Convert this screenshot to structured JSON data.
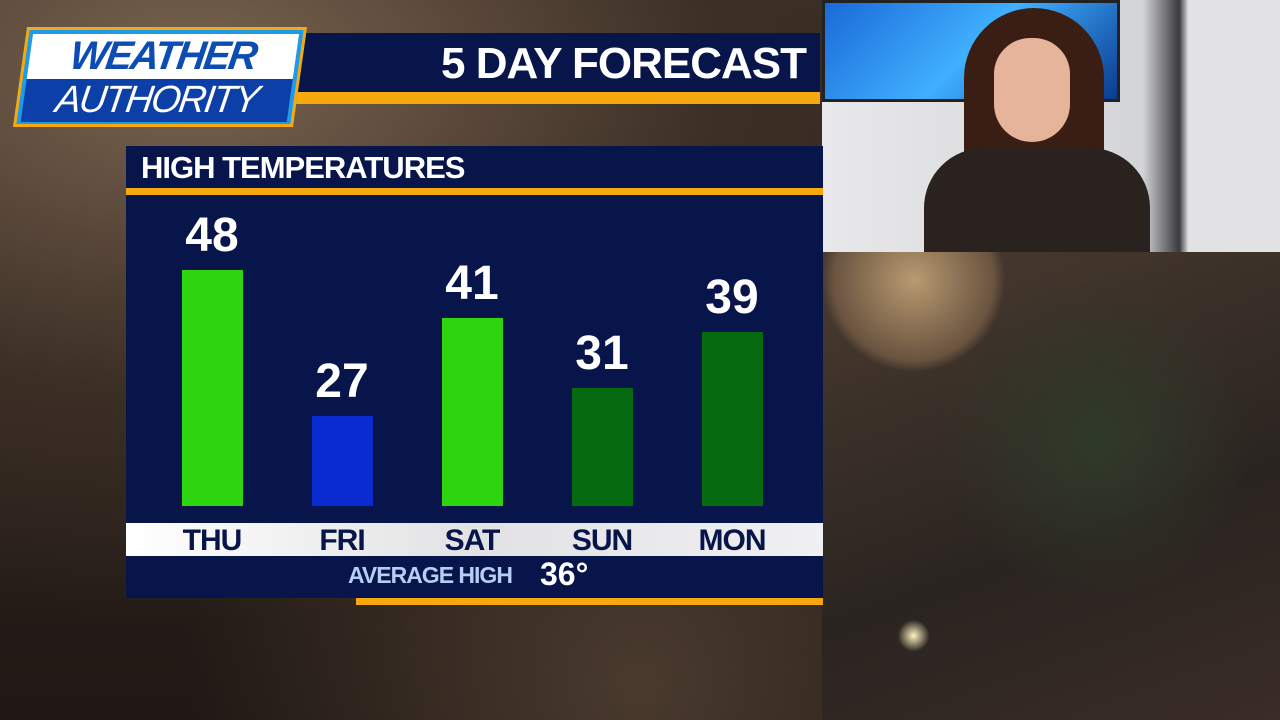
{
  "logo": {
    "line1": "WEATHER",
    "line2": "AUTHORITY"
  },
  "banner": {
    "title": "5 DAY FORECAST"
  },
  "chart_data": {
    "type": "bar",
    "title": "HIGH TEMPERATURES",
    "categories": [
      "THU",
      "FRI",
      "SAT",
      "SUN",
      "MON"
    ],
    "values": [
      48,
      27,
      41,
      31,
      39
    ],
    "value_labels": [
      "48",
      "27",
      "41",
      "31",
      "39"
    ],
    "bar_colors": [
      "#2ed40e",
      "#0a2bd0",
      "#2ed40e",
      "#056a10",
      "#056a10"
    ],
    "average": {
      "label": "AVERAGE HIGH",
      "value": "36°"
    }
  },
  "colors": {
    "navy": "#07154a",
    "accent": "#f5a90e"
  }
}
